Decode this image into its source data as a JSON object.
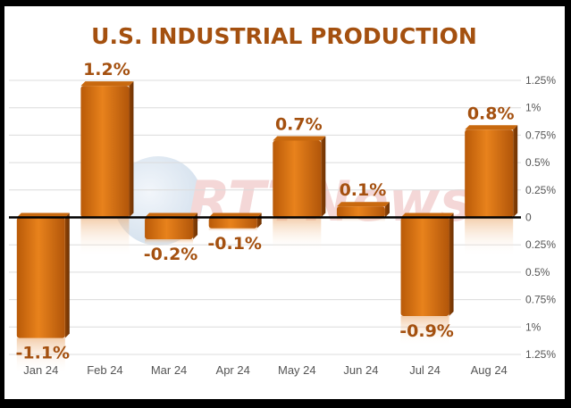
{
  "chart_data": {
    "type": "bar",
    "title": "U.S. INDUSTRIAL PRODUCTION",
    "categories": [
      "Jan 24",
      "Feb 24",
      "Mar 24",
      "Apr 24",
      "May 24",
      "Jun 24",
      "Jul 24",
      "Aug 24"
    ],
    "values": [
      -1.1,
      1.2,
      -0.2,
      -0.1,
      0.7,
      0.1,
      -0.9,
      0.8
    ],
    "data_labels": [
      "-1.1%",
      "1.2%",
      "-0.2%",
      "-0.1%",
      "0.7%",
      "0.1%",
      "-0.9%",
      "0.8%"
    ],
    "y_ticks": [
      1.25,
      1,
      0.75,
      0.5,
      0.25,
      0,
      -0.25,
      -0.5,
      -0.75,
      -1,
      -1.25
    ],
    "y_tick_labels": [
      "1.25%",
      "1%",
      "0.75%",
      "0.5%",
      "0.25%",
      "0",
      "0.25%",
      "0.5%",
      "0.75%",
      "1%",
      "1.25%"
    ],
    "ylim": [
      -1.25,
      1.25
    ],
    "xlabel": "",
    "ylabel": "",
    "grid": true,
    "axis_side": "right",
    "bar_color": "#d9730f",
    "label_color": "#a4500f",
    "watermark": "RTTNews"
  }
}
